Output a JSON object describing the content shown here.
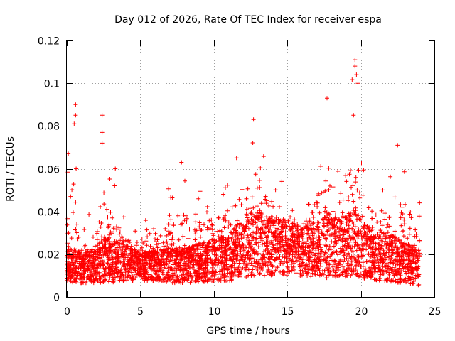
{
  "chart_data": {
    "type": "scatter",
    "title": "Day 012 of 2026, Rate Of TEC Index for receiver espa",
    "xlabel": "GPS time / hours",
    "ylabel": "ROTI / TECUs",
    "xlim": [
      0,
      25
    ],
    "ylim": [
      0,
      0.12
    ],
    "xticks": [
      0,
      5,
      10,
      15,
      20,
      25
    ],
    "xtick_labels": [
      "0",
      "5",
      "10",
      "15",
      "20",
      "25"
    ],
    "yticks": [
      0,
      0.02,
      0.04,
      0.06,
      0.08,
      0.1,
      0.12
    ],
    "ytick_labels": [
      "0",
      "0.02",
      "0.04",
      "0.06",
      "0.08",
      "0.1",
      "0.12"
    ],
    "grid": true,
    "marker": "plus",
    "color": "#ff0000",
    "series": [
      {
        "name": "ROTI",
        "x_range": [
          0,
          24
        ],
        "density_profile": [
          {
            "t": 0,
            "base": 0.014,
            "spread": 0.012,
            "peak": 0.067
          },
          {
            "t": 0.5,
            "base": 0.013,
            "spread": 0.012,
            "peak": 0.09
          },
          {
            "t": 1,
            "base": 0.012,
            "spread": 0.01,
            "peak": 0.04
          },
          {
            "t": 2,
            "base": 0.013,
            "spread": 0.012,
            "peak": 0.04
          },
          {
            "t": 2.5,
            "base": 0.015,
            "spread": 0.016,
            "peak": 0.085
          },
          {
            "t": 3,
            "base": 0.015,
            "spread": 0.015,
            "peak": 0.06
          },
          {
            "t": 4,
            "base": 0.014,
            "spread": 0.012,
            "peak": 0.038
          },
          {
            "t": 5,
            "base": 0.013,
            "spread": 0.01,
            "peak": 0.043
          },
          {
            "t": 6,
            "base": 0.013,
            "spread": 0.01,
            "peak": 0.035
          },
          {
            "t": 7,
            "base": 0.013,
            "spread": 0.012,
            "peak": 0.055
          },
          {
            "t": 8,
            "base": 0.013,
            "spread": 0.012,
            "peak": 0.064
          },
          {
            "t": 9,
            "base": 0.014,
            "spread": 0.013,
            "peak": 0.057
          },
          {
            "t": 10,
            "base": 0.015,
            "spread": 0.014,
            "peak": 0.056
          },
          {
            "t": 11,
            "base": 0.016,
            "spread": 0.016,
            "peak": 0.06
          },
          {
            "t": 12,
            "base": 0.02,
            "spread": 0.02,
            "peak": 0.077
          },
          {
            "t": 12.7,
            "base": 0.022,
            "spread": 0.022,
            "peak": 0.083
          },
          {
            "t": 13.5,
            "base": 0.021,
            "spread": 0.02,
            "peak": 0.07
          },
          {
            "t": 15,
            "base": 0.02,
            "spread": 0.018,
            "peak": 0.055
          },
          {
            "t": 16,
            "base": 0.019,
            "spread": 0.017,
            "peak": 0.045
          },
          {
            "t": 17,
            "base": 0.019,
            "spread": 0.018,
            "peak": 0.068
          },
          {
            "t": 17.8,
            "base": 0.021,
            "spread": 0.022,
            "peak": 0.093
          },
          {
            "t": 18.5,
            "base": 0.02,
            "spread": 0.02,
            "peak": 0.07
          },
          {
            "t": 19.5,
            "base": 0.022,
            "spread": 0.022,
            "peak": 0.111
          },
          {
            "t": 20.5,
            "base": 0.018,
            "spread": 0.018,
            "peak": 0.055
          },
          {
            "t": 22,
            "base": 0.016,
            "spread": 0.016,
            "peak": 0.06
          },
          {
            "t": 23,
            "base": 0.014,
            "spread": 0.014,
            "peak": 0.07
          },
          {
            "t": 24,
            "base": 0.012,
            "spread": 0.012,
            "peak": 0.044
          }
        ],
        "notable_points": [
          {
            "x": 0.1,
            "y": 0.067
          },
          {
            "x": 0.6,
            "y": 0.09
          },
          {
            "x": 0.6,
            "y": 0.085
          },
          {
            "x": 0.5,
            "y": 0.081
          },
          {
            "x": 2.4,
            "y": 0.085
          },
          {
            "x": 2.4,
            "y": 0.077
          },
          {
            "x": 2.4,
            "y": 0.072
          },
          {
            "x": 3.3,
            "y": 0.06
          },
          {
            "x": 7.8,
            "y": 0.063
          },
          {
            "x": 12.7,
            "y": 0.083
          },
          {
            "x": 17.7,
            "y": 0.093
          },
          {
            "x": 19.6,
            "y": 0.111
          },
          {
            "x": 19.6,
            "y": 0.108
          },
          {
            "x": 19.7,
            "y": 0.104
          },
          {
            "x": 19.8,
            "y": 0.1
          },
          {
            "x": 19.5,
            "y": 0.085
          },
          {
            "x": 22.5,
            "y": 0.071
          },
          {
            "x": 24,
            "y": 0.044
          }
        ]
      }
    ]
  }
}
